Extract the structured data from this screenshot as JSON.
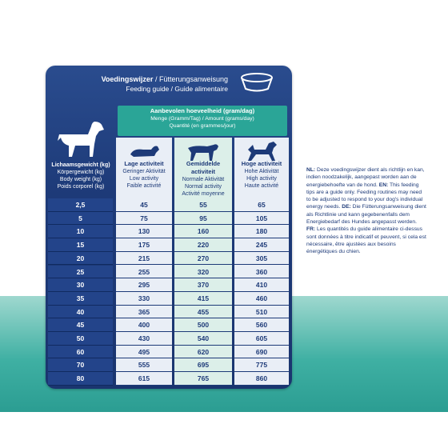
{
  "header": {
    "title_bold": "Voedingswijzer",
    "title_rest": " / Fütterungsanweisung",
    "subtitle": "Feeding guide / Guide alimentaire"
  },
  "recommendation": {
    "title": "Aanbevolen hoeveelheid (gram/dag)",
    "line2": "Menge (Gramm/Tag) / Amount (grams/day)",
    "line3": "Quantité (en grammes/jour)"
  },
  "table": {
    "header": [
      [
        "Lichaamsgewicht (kg)",
        "Körpergewicht (kg)",
        "Body weight (kg)",
        "Poids corporel (kg)"
      ],
      [
        "Lage activiteit",
        "Geringer Aktivität",
        "Low activity",
        "Faible activité"
      ],
      [
        "Gemiddelde activiteit",
        "Normale Aktivität",
        "Normal activity",
        "Activité moyenne"
      ],
      [
        "Hoge activiteit",
        "Hohe Aktivität",
        "High activity",
        "Haute activité"
      ]
    ],
    "rows": [
      [
        "2,5",
        45,
        55,
        65
      ],
      [
        5,
        75,
        95,
        105
      ],
      [
        10,
        130,
        160,
        180
      ],
      [
        15,
        175,
        220,
        245
      ],
      [
        20,
        215,
        270,
        305
      ],
      [
        25,
        255,
        320,
        360
      ],
      [
        30,
        295,
        370,
        410
      ],
      [
        35,
        330,
        415,
        460
      ],
      [
        40,
        365,
        455,
        510
      ],
      [
        45,
        400,
        500,
        560
      ],
      [
        50,
        430,
        540,
        605
      ],
      [
        60,
        495,
        620,
        690
      ],
      [
        70,
        555,
        695,
        775
      ],
      [
        80,
        615,
        765,
        860
      ]
    ]
  },
  "note": [
    {
      "lang": "NL:",
      "text": " Deze voedingswijzer dient als richtlijn en kan, indien noodzakelijk, aangepast worden aan de energiebehoefte van de hond. "
    },
    {
      "lang": "EN:",
      "text": " This feeding tips are a guide only. Feeding routines may need to be adjusted to respond to your dog's individual energy needs. "
    },
    {
      "lang": "DE:",
      "text": " Die Fütterungsanweisung dient als Richtlinie und kann gegebenenfalls dem Energiebedarf des Hundes angepasst werden. "
    },
    {
      "lang": "FR:",
      "text": " Les quantités du guide alimentaire ci-dessus sont données à titre indicatif et peuvent, si cela est nécessaire, être ajustées aux besoins énergétiques du chien."
    }
  ]
}
